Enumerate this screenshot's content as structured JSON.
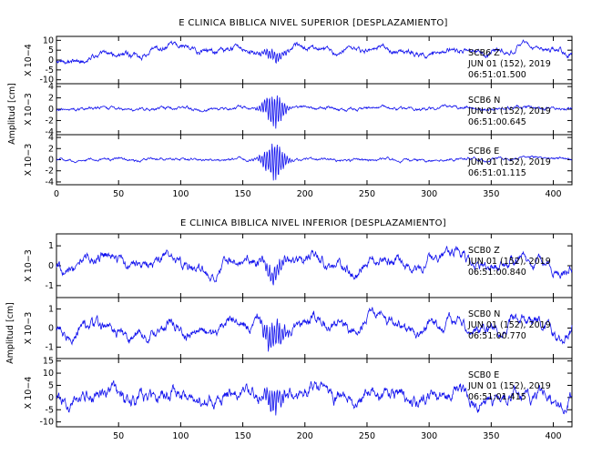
{
  "chart_data": [
    {
      "type": "line",
      "title": "E CLINICA BIBLICA NIVEL SUPERIOR [DESPLAZAMIENTO]",
      "ylabel": "Amplitud [cm]",
      "xlim": [
        0,
        415
      ],
      "x_ticks": [
        0,
        50,
        100,
        150,
        200,
        250,
        300,
        350,
        400
      ],
      "panels": [
        {
          "scale_label": "X 10−4",
          "ylim": [
            -12,
            12
          ],
          "y_ticks": [
            10,
            5,
            0,
            -5,
            -10
          ],
          "annotation": [
            "SCB6   Z",
            "JUN 01 (152), 2019",
            "06:51:01.500"
          ],
          "trace": {
            "base": 5,
            "noise": 1.8,
            "wave": 2.5,
            "burst": 3,
            "drift": [
              0,
              5.5,
              5,
              4,
              6
            ]
          }
        },
        {
          "scale_label": "X 10−3",
          "ylim": [
            -4.5,
            4.5
          ],
          "y_ticks": [
            4,
            2,
            0,
            -2,
            -4
          ],
          "annotation": [
            "SCB6   N",
            "JUN 01 (152), 2019",
            "06:51:00.645"
          ],
          "trace": {
            "base": 0,
            "noise": 0.35,
            "wave": 0.3,
            "burst": 3.3,
            "drift": [
              0,
              0.1,
              0.1,
              0.2,
              0.3
            ]
          }
        },
        {
          "scale_label": "X 10−3",
          "ylim": [
            -4.5,
            4.5
          ],
          "y_ticks": [
            4,
            2,
            0,
            -2,
            -4
          ],
          "annotation": [
            "SCB6   E",
            "JUN 01 (152), 2019",
            "06:51:01.115"
          ],
          "trace": {
            "base": 0,
            "noise": 0.3,
            "wave": 0.25,
            "burst": 3.8,
            "drift": [
              0,
              0,
              0,
              0,
              0.4
            ]
          }
        }
      ]
    },
    {
      "type": "line",
      "title": "E CLINICA BIBLICA NIVEL INFERIOR [DESPLAZAMIENTO]",
      "ylabel": "Amplitud [cm]",
      "xlim": [
        0,
        415
      ],
      "x_ticks": [
        50,
        100,
        150,
        200,
        250,
        300,
        350,
        400
      ],
      "panels": [
        {
          "scale_label": "X 10−3",
          "ylim": [
            -1.6,
            1.6
          ],
          "y_ticks": [
            1,
            0,
            -1
          ],
          "annotation": [
            "SCB0   Z",
            "JUN 01 (152), 2019",
            "06:51:00.840"
          ],
          "trace": {
            "base": 0,
            "noise": 0.32,
            "wave": 0.6,
            "burst": 0.5,
            "drift": [
              0.2,
              0.1,
              0,
              0.3,
              0
            ]
          }
        },
        {
          "scale_label": "X 10−3",
          "ylim": [
            -1.6,
            1.6
          ],
          "y_ticks": [
            1,
            0,
            -1
          ],
          "annotation": [
            "SCB0   N",
            "JUN 01 (152), 2019",
            "06:51:00.770"
          ],
          "trace": {
            "base": 0,
            "noise": 0.35,
            "wave": 0.55,
            "burst": 0.8,
            "drift": [
              0,
              -0.2,
              0.2,
              0.1,
              0
            ]
          }
        },
        {
          "scale_label": "X 10−4",
          "ylim": [
            -12,
            16
          ],
          "y_ticks": [
            15,
            10,
            5,
            0,
            -5,
            -10
          ],
          "annotation": [
            "SCB0   E",
            "JUN 01 (152), 2019",
            "06:51:01.415"
          ],
          "trace": {
            "base": 0,
            "noise": 3.2,
            "wave": 3.5,
            "burst": 6,
            "drift": [
              0,
              0,
              1,
              0,
              0
            ]
          }
        }
      ]
    }
  ],
  "colors": {
    "trace": "#1010ee",
    "axes": "#000000",
    "background": "#ffffff"
  }
}
